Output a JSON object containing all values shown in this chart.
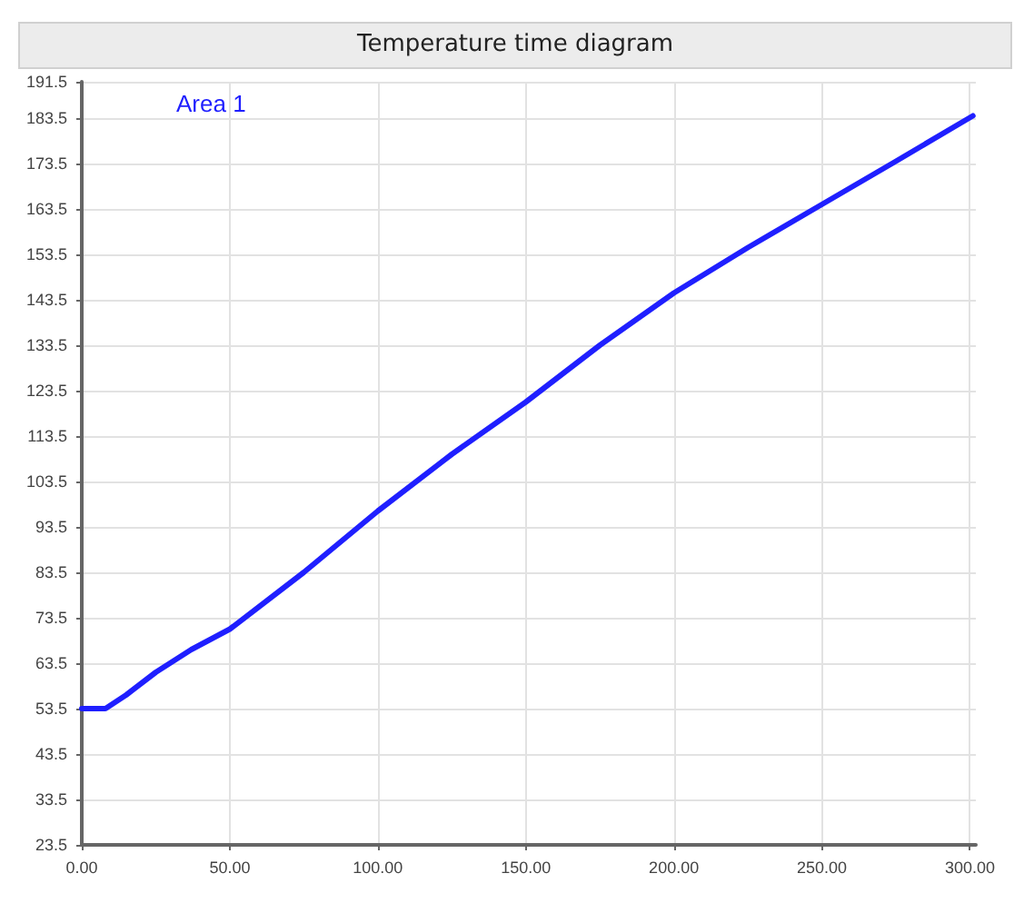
{
  "chart_data": {
    "type": "line",
    "title": "Temperature time diagram",
    "x": [
      0,
      8,
      15,
      25,
      37,
      50,
      75,
      100,
      125,
      150,
      175,
      200,
      225,
      250,
      275,
      301
    ],
    "series": [
      {
        "name": "Area 1",
        "color": "#1f1fff",
        "values": [
          53.5,
          53.5,
          56.5,
          61.5,
          66.5,
          71,
          83.5,
          97,
          109.5,
          121,
          133.5,
          145,
          155,
          164.5,
          174,
          184
        ]
      }
    ],
    "xlim": [
      0,
      302
    ],
    "xticks": [
      {
        "value": 0,
        "label": "0.00"
      },
      {
        "value": 50,
        "label": "50.00"
      },
      {
        "value": 100,
        "label": "100.00"
      },
      {
        "value": 150,
        "label": "150.00"
      },
      {
        "value": 200,
        "label": "200.00"
      },
      {
        "value": 250,
        "label": "250.00"
      },
      {
        "value": 300,
        "label": "300.00"
      }
    ],
    "ylim": [
      23.5,
      191.5
    ],
    "yticks": [
      23.5,
      33.5,
      43.5,
      53.5,
      63.5,
      73.5,
      83.5,
      93.5,
      103.5,
      113.5,
      123.5,
      133.5,
      143.5,
      153.5,
      163.5,
      173.5,
      183.5,
      191.5
    ],
    "grid": true,
    "legend": "top left",
    "marker": "none",
    "line_style": "solid"
  }
}
